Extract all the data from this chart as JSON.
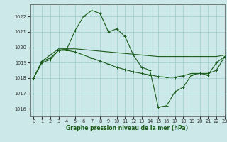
{
  "title": "Graphe pression niveau de la mer (hPa)",
  "bg_color": "#cce8e8",
  "grid_color": "#99cccc",
  "line_color": "#1a5c1a",
  "xlim": [
    -0.5,
    23
  ],
  "ylim": [
    1015.5,
    1022.8
  ],
  "yticks": [
    1016,
    1017,
    1018,
    1019,
    1020,
    1021,
    1022
  ],
  "xticks": [
    0,
    1,
    2,
    3,
    4,
    5,
    6,
    7,
    8,
    9,
    10,
    11,
    12,
    13,
    14,
    15,
    16,
    17,
    18,
    19,
    20,
    21,
    22,
    23
  ],
  "series1_x": [
    0,
    1,
    2,
    3,
    4,
    5,
    6,
    7,
    8,
    9,
    10,
    11,
    12,
    13,
    14,
    15,
    16,
    17,
    18,
    19,
    20,
    21,
    22,
    23
  ],
  "series1_y": [
    1018.0,
    1019.0,
    1019.2,
    1019.8,
    1019.9,
    1021.1,
    1022.0,
    1022.4,
    1022.2,
    1021.0,
    1021.2,
    1020.7,
    1019.5,
    1018.7,
    1018.5,
    1016.1,
    1016.2,
    1017.1,
    1017.4,
    1018.2,
    1018.3,
    1018.2,
    1019.0,
    1019.4
  ],
  "series2_x": [
    0,
    1,
    2,
    3,
    4,
    5,
    6,
    7,
    8,
    9,
    10,
    11,
    12,
    13,
    14,
    15,
    16,
    17,
    18,
    19,
    20,
    21,
    22,
    23
  ],
  "series2_y": [
    1018.0,
    1019.1,
    1019.5,
    1019.9,
    1019.9,
    1019.9,
    1019.85,
    1019.8,
    1019.75,
    1019.7,
    1019.65,
    1019.6,
    1019.55,
    1019.5,
    1019.45,
    1019.4,
    1019.4,
    1019.4,
    1019.4,
    1019.4,
    1019.4,
    1019.4,
    1019.4,
    1019.5
  ],
  "series3_x": [
    0,
    1,
    2,
    3,
    4,
    5,
    6,
    7,
    8,
    9,
    10,
    11,
    12,
    13,
    14,
    15,
    16,
    17,
    18,
    19,
    20,
    21,
    22,
    23
  ],
  "series3_y": [
    1018.0,
    1019.1,
    1019.3,
    1019.8,
    1019.8,
    1019.7,
    1019.5,
    1019.3,
    1019.1,
    1018.9,
    1018.7,
    1018.55,
    1018.4,
    1018.3,
    1018.2,
    1018.1,
    1018.05,
    1018.05,
    1018.15,
    1018.3,
    1018.3,
    1018.3,
    1018.5,
    1019.4
  ],
  "xlabel_fontsize": 5.5,
  "tick_fontsize": 4.8,
  "linewidth": 0.8,
  "marker_size": 2.8
}
